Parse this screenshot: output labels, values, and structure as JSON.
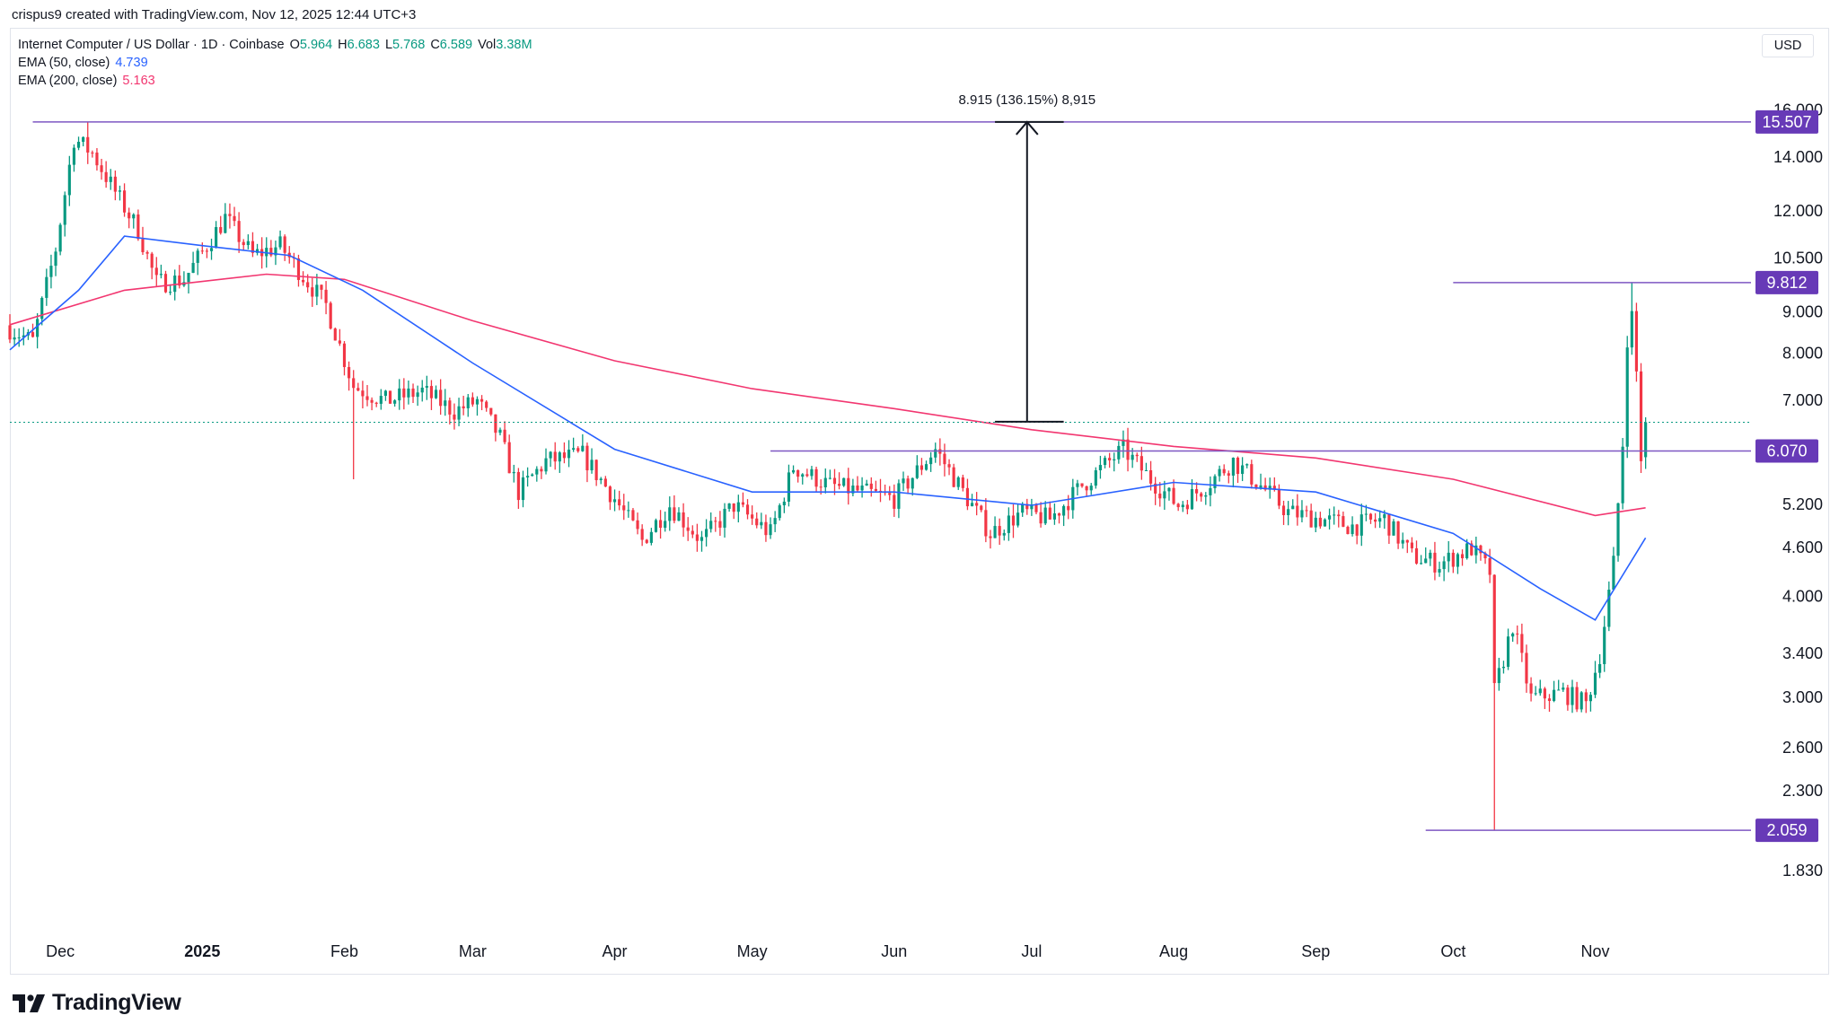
{
  "header": {
    "attribution": "crispus9 created with TradingView.com, Nov 12, 2025 12:44 UTC+3",
    "currency": "USD"
  },
  "legend": {
    "symbol": "Internet Computer / US Dollar · 1D · Coinbase",
    "ohlc": [
      {
        "key": "O",
        "value": "5.964"
      },
      {
        "key": "H",
        "value": "6.683"
      },
      {
        "key": "L",
        "value": "5.768"
      },
      {
        "key": "C",
        "value": "6.589"
      },
      {
        "key": "Vol",
        "value": "3.38M"
      }
    ],
    "ema50_label": "EMA (50, close)",
    "ema50_value": "4.739",
    "ema200_label": "EMA (200, close)",
    "ema200_value": "5.163"
  },
  "footer": {
    "brand": "TradingView"
  },
  "colors": {
    "up": "#089981",
    "down": "#f23645",
    "ema50": "#2962ff",
    "ema200": "#f23670",
    "level": "#7e57c2",
    "label_bg": "#673ab7"
  },
  "chart_data": {
    "type": "candlestick",
    "symbol": "Internet Computer / US Dollar",
    "interval": "1D",
    "exchange": "Coinbase",
    "y_scale": "log",
    "y_range": [
      1.7,
      17.0
    ],
    "x_range": [
      "2024-11-20",
      "2025-12-05"
    ],
    "y_ticks": [
      "16.000",
      "14.000",
      "12.000",
      "10.500",
      "9.000",
      "8.000",
      "7.000",
      "5.200",
      "4.600",
      "4.000",
      "3.400",
      "3.000",
      "2.600",
      "2.300",
      "1.830"
    ],
    "x_ticks": [
      {
        "date": "2024-12-01",
        "label": "Dec"
      },
      {
        "date": "2025-01-01",
        "label": "2025"
      },
      {
        "date": "2025-02-01",
        "label": "Feb"
      },
      {
        "date": "2025-03-01",
        "label": "Mar"
      },
      {
        "date": "2025-04-01",
        "label": "Apr"
      },
      {
        "date": "2025-05-01",
        "label": "May"
      },
      {
        "date": "2025-06-01",
        "label": "Jun"
      },
      {
        "date": "2025-07-01",
        "label": "Jul"
      },
      {
        "date": "2025-08-01",
        "label": "Aug"
      },
      {
        "date": "2025-09-01",
        "label": "Sep"
      },
      {
        "date": "2025-10-01",
        "label": "Oct"
      },
      {
        "date": "2025-11-01",
        "label": "Nov"
      }
    ],
    "close_path": [
      {
        "date": "2024-11-20",
        "close": 8.6
      },
      {
        "date": "2024-11-25",
        "close": 8.3
      },
      {
        "date": "2024-11-30",
        "close": 10.8
      },
      {
        "date": "2024-12-04",
        "close": 14.8
      },
      {
        "date": "2024-12-08",
        "close": 14.2
      },
      {
        "date": "2024-12-13",
        "close": 12.7
      },
      {
        "date": "2024-12-18",
        "close": 11.4
      },
      {
        "date": "2024-12-22",
        "close": 9.8
      },
      {
        "date": "2024-12-28",
        "close": 9.9
      },
      {
        "date": "2025-01-01",
        "close": 10.7
      },
      {
        "date": "2025-01-06",
        "close": 11.8
      },
      {
        "date": "2025-01-12",
        "close": 10.6
      },
      {
        "date": "2025-01-18",
        "close": 10.9
      },
      {
        "date": "2025-01-23",
        "close": 10.0
      },
      {
        "date": "2025-01-28",
        "close": 9.2
      },
      {
        "date": "2025-02-03",
        "close": 7.3
      },
      {
        "date": "2025-02-10",
        "close": 7.0
      },
      {
        "date": "2025-02-18",
        "close": 7.2
      },
      {
        "date": "2025-02-25",
        "close": 6.8
      },
      {
        "date": "2025-03-02",
        "close": 7.0
      },
      {
        "date": "2025-03-07",
        "close": 6.3
      },
      {
        "date": "2025-03-11",
        "close": 5.4
      },
      {
        "date": "2025-03-17",
        "close": 5.9
      },
      {
        "date": "2025-03-25",
        "close": 6.0
      },
      {
        "date": "2025-04-01",
        "close": 5.3
      },
      {
        "date": "2025-04-07",
        "close": 4.7
      },
      {
        "date": "2025-04-13",
        "close": 5.2
      },
      {
        "date": "2025-04-20",
        "close": 4.7
      },
      {
        "date": "2025-04-27",
        "close": 5.2
      },
      {
        "date": "2025-05-05",
        "close": 4.8
      },
      {
        "date": "2025-05-10",
        "close": 5.8
      },
      {
        "date": "2025-05-18",
        "close": 5.5
      },
      {
        "date": "2025-05-25",
        "close": 5.4
      },
      {
        "date": "2025-06-01",
        "close": 5.3
      },
      {
        "date": "2025-06-10",
        "close": 6.1
      },
      {
        "date": "2025-06-17",
        "close": 5.3
      },
      {
        "date": "2025-06-22",
        "close": 4.8
      },
      {
        "date": "2025-06-29",
        "close": 5.1
      },
      {
        "date": "2025-07-05",
        "close": 5.0
      },
      {
        "date": "2025-07-12",
        "close": 5.5
      },
      {
        "date": "2025-07-21",
        "close": 6.1
      },
      {
        "date": "2025-07-27",
        "close": 5.6
      },
      {
        "date": "2025-08-02",
        "close": 5.2
      },
      {
        "date": "2025-08-08",
        "close": 5.5
      },
      {
        "date": "2025-08-14",
        "close": 5.9
      },
      {
        "date": "2025-08-20",
        "close": 5.5
      },
      {
        "date": "2025-08-26",
        "close": 5.1
      },
      {
        "date": "2025-09-02",
        "close": 5.0
      },
      {
        "date": "2025-09-09",
        "close": 4.9
      },
      {
        "date": "2025-09-16",
        "close": 5.0
      },
      {
        "date": "2025-09-22",
        "close": 4.5
      },
      {
        "date": "2025-09-28",
        "close": 4.4
      },
      {
        "date": "2025-10-05",
        "close": 4.6
      },
      {
        "date": "2025-10-09",
        "close": 4.3
      },
      {
        "date": "2025-10-10",
        "close": 3.05
      },
      {
        "date": "2025-10-14",
        "close": 3.7
      },
      {
        "date": "2025-10-18",
        "close": 3.0
      },
      {
        "date": "2025-10-25",
        "close": 3.05
      },
      {
        "date": "2025-10-30",
        "close": 2.95
      },
      {
        "date": "2025-11-02",
        "close": 3.4
      },
      {
        "date": "2025-11-05",
        "close": 4.4
      },
      {
        "date": "2025-11-07",
        "close": 6.2
      },
      {
        "date": "2025-11-08",
        "close": 8.4
      },
      {
        "date": "2025-11-09",
        "close": 8.9
      },
      {
        "date": "2025-11-10",
        "close": 7.6
      },
      {
        "date": "2025-11-11",
        "close": 5.96
      },
      {
        "date": "2025-11-12",
        "close": 6.589
      }
    ],
    "special_wicks": [
      {
        "date": "2024-12-07",
        "high": 15.507
      },
      {
        "date": "2025-10-10",
        "low": 2.059
      },
      {
        "date": "2025-11-09",
        "high": 9.812
      },
      {
        "date": "2025-02-03",
        "low": 5.6
      }
    ],
    "ema50_path": [
      {
        "date": "2024-11-20",
        "value": 8.1
      },
      {
        "date": "2024-12-05",
        "value": 9.6
      },
      {
        "date": "2024-12-15",
        "value": 11.2
      },
      {
        "date": "2025-01-01",
        "value": 10.9
      },
      {
        "date": "2025-01-20",
        "value": 10.6
      },
      {
        "date": "2025-02-05",
        "value": 9.6
      },
      {
        "date": "2025-03-01",
        "value": 7.8
      },
      {
        "date": "2025-04-01",
        "value": 6.1
      },
      {
        "date": "2025-05-01",
        "value": 5.4
      },
      {
        "date": "2025-06-01",
        "value": 5.4
      },
      {
        "date": "2025-07-01",
        "value": 5.2
      },
      {
        "date": "2025-08-01",
        "value": 5.55
      },
      {
        "date": "2025-09-01",
        "value": 5.4
      },
      {
        "date": "2025-10-01",
        "value": 4.8
      },
      {
        "date": "2025-10-20",
        "value": 4.1
      },
      {
        "date": "2025-11-01",
        "value": 3.75
      },
      {
        "date": "2025-11-12",
        "value": 4.739
      }
    ],
    "ema200_path": [
      {
        "date": "2024-11-20",
        "value": 8.7
      },
      {
        "date": "2024-12-15",
        "value": 9.6
      },
      {
        "date": "2025-01-15",
        "value": 10.05
      },
      {
        "date": "2025-02-01",
        "value": 9.9
      },
      {
        "date": "2025-03-01",
        "value": 8.8
      },
      {
        "date": "2025-04-01",
        "value": 7.85
      },
      {
        "date": "2025-05-01",
        "value": 7.25
      },
      {
        "date": "2025-06-01",
        "value": 6.85
      },
      {
        "date": "2025-07-01",
        "value": 6.45
      },
      {
        "date": "2025-08-01",
        "value": 6.15
      },
      {
        "date": "2025-09-01",
        "value": 5.95
      },
      {
        "date": "2025-10-01",
        "value": 5.6
      },
      {
        "date": "2025-11-01",
        "value": 5.05
      },
      {
        "date": "2025-11-12",
        "value": 5.163
      }
    ],
    "levels": [
      {
        "name": "high-level",
        "price": 15.507,
        "label": "15.507",
        "from": "2024-11-25",
        "to": "2025-12-05"
      },
      {
        "name": "recent-high-level",
        "price": 9.812,
        "label": "9.812",
        "from": "2025-10-01",
        "to": "2025-12-05"
      },
      {
        "name": "support-level",
        "price": 6.07,
        "label": "6.070",
        "from": "2025-05-05",
        "to": "2025-12-05"
      },
      {
        "name": "low-level",
        "price": 2.059,
        "label": "2.059",
        "from": "2025-09-25",
        "to": "2025-12-05"
      }
    ],
    "current_price": 6.589,
    "measure": {
      "date": "2025-06-30",
      "from_price": 6.6,
      "to_price": 15.507,
      "span": [
        "2025-06-23",
        "2025-07-08"
      ],
      "label": "8.915 (136.15%) 8,915"
    }
  }
}
